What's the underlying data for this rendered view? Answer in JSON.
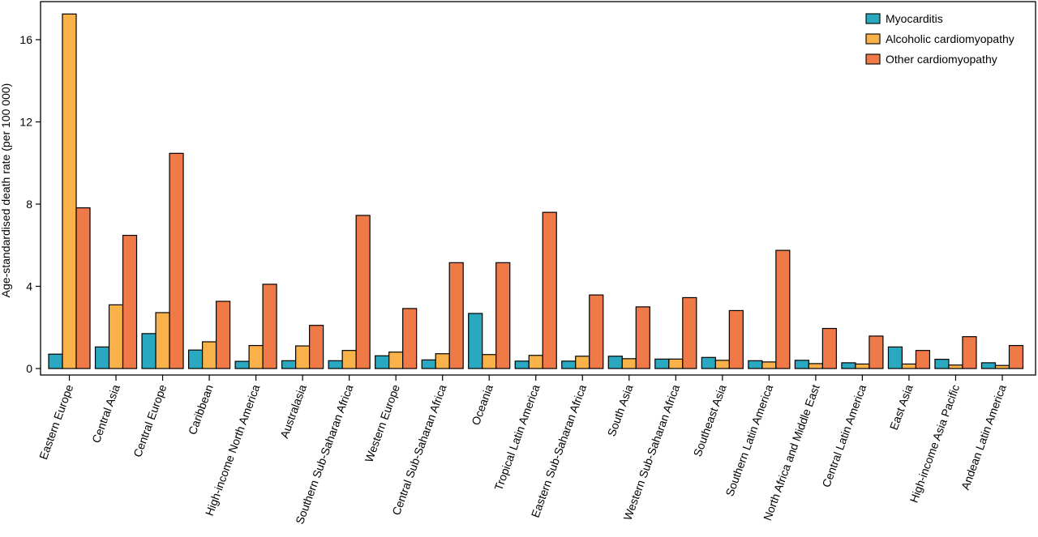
{
  "chart_data": {
    "type": "bar",
    "title": "",
    "xlabel": "",
    "ylabel": "Age-standardised death rate (per 100 000)",
    "ylim": [
      0,
      17.6
    ],
    "yticks": [
      0,
      4,
      8,
      12,
      16
    ],
    "legend_position": "top-right",
    "grid": false,
    "categories": [
      "Eastern Europe",
      "Central Asia",
      "Central Europe",
      "Caribbean",
      "High-income North America",
      "Australasia",
      "Southern Sub-Saharan Africa",
      "Western Europe",
      "Central Sub-Saharan Africa",
      "Oceania",
      "Tropical Latin America",
      "Eastern Sub-Saharan Africa",
      "South Asia",
      "Western Sub-Saharan Africa",
      "Southeast Asia",
      "Southern Latin America",
      "North Africa and Middle East",
      "Central Latin America",
      "East Asia",
      "High-income Asia Pacific",
      "Andean Latin America"
    ],
    "series": [
      {
        "name": "Myocarditis",
        "color": "#2aa8bf",
        "values": [
          0.7,
          1.05,
          1.7,
          0.9,
          0.35,
          0.38,
          0.38,
          0.62,
          0.42,
          2.68,
          0.36,
          0.36,
          0.6,
          0.46,
          0.54,
          0.38,
          0.4,
          0.28,
          1.05,
          0.45,
          0.28
        ]
      },
      {
        "name": "Alcoholic cardiomyopathy",
        "color": "#f9b24a",
        "values": [
          17.25,
          3.1,
          2.72,
          1.3,
          1.12,
          1.1,
          0.88,
          0.8,
          0.72,
          0.68,
          0.64,
          0.6,
          0.48,
          0.46,
          0.4,
          0.32,
          0.24,
          0.22,
          0.22,
          0.17,
          0.15
        ]
      },
      {
        "name": "Other cardiomyopathy",
        "color": "#ef7a48",
        "values": [
          7.82,
          6.48,
          10.47,
          3.27,
          4.1,
          2.1,
          7.45,
          2.92,
          5.15,
          5.15,
          7.6,
          3.58,
          3.0,
          3.45,
          2.82,
          5.75,
          1.95,
          1.58,
          0.88,
          1.55,
          1.12
        ]
      }
    ]
  }
}
